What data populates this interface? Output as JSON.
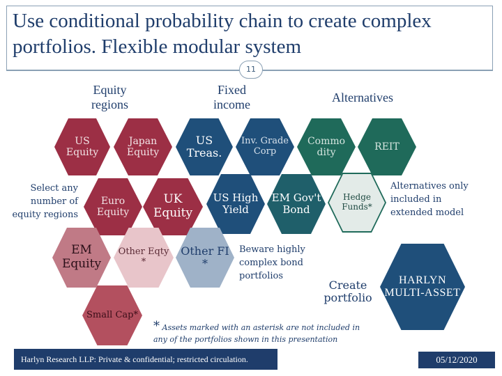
{
  "title": "Use conditional probability chain to create complex portfolios. Flexible modular system",
  "page_number": "11",
  "headings": {
    "equity": "Equity regions",
    "fixed": "Fixed income",
    "alternatives": "Alternatives"
  },
  "hexes": {
    "us_equity": "US Equity",
    "japan_equity": "Japan Equity",
    "us_treas": "US Treas.",
    "inv_grade": "Inv. Grade Corp",
    "commodity": "Commo dity",
    "reit": "REIT",
    "euro_equity": "Euro Equity",
    "uk_equity": "UK Equity",
    "us_high_yield": "US High Yield",
    "em_govt": "EM Gov't Bond",
    "hedge_funds": "Hedge Funds*",
    "em_equity": "EM Equity",
    "other_eqty": "Other Eqty *",
    "other_fi": "Other FI *",
    "small_cap": "Small Cap*",
    "create_portfolio": "Create portfolio",
    "harlyn": "HARLYN MULTI-ASSET"
  },
  "notes": {
    "select_regions": "Select any number of equity regions",
    "beware": "Beware highly complex bond portfolios",
    "alternatives_only": "Alternatives only included in extended model",
    "asterisk_mark": "*",
    "asterisk_text": "Assets marked with an asterisk are not included in any of the portfolios shown in this presentation"
  },
  "footer": "Harlyn Research LLP: Private & confidential; restricted circulation.",
  "date": "05/12/2020",
  "colors": {
    "navy": "#1f3d6b",
    "equity_dark": "#9c2f45",
    "equity_light": "#c07a86",
    "bond_dark": "#1f4f7a",
    "bond_light": "#9fb2c8",
    "alt_dark": "#1f6a5a",
    "alt_light": "#e3ebe8"
  }
}
